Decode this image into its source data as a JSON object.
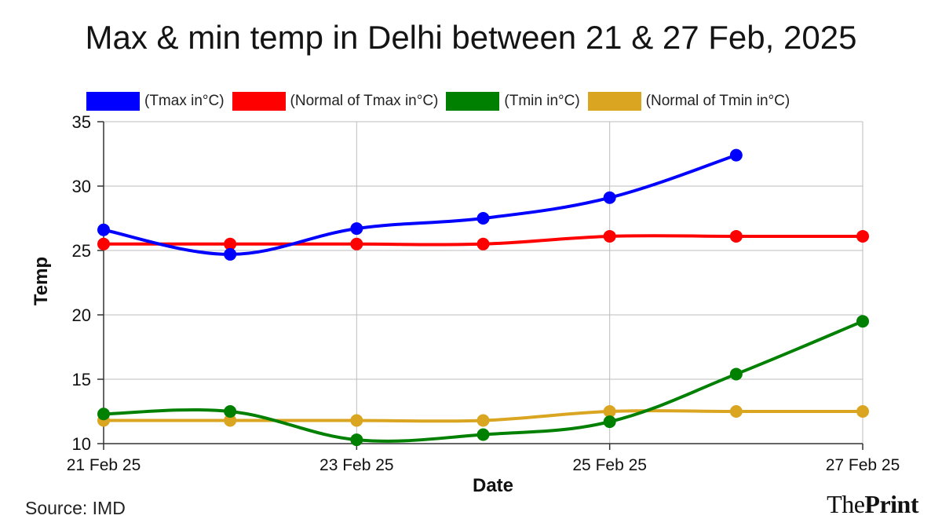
{
  "chart_data": {
    "type": "line",
    "title": "Max & min temp in Delhi between 21 & 27 Feb, 2025",
    "xlabel": "Date",
    "ylabel": "Temp",
    "x_dates": [
      "21 Feb 25",
      "22 Feb 25",
      "23 Feb 25",
      "24 Feb 25",
      "25 Feb 25",
      "26 Feb 25",
      "27 Feb 25"
    ],
    "x_tick_labels": [
      "21 Feb 25",
      "23 Feb 25",
      "25 Feb 25",
      "27 Feb 25"
    ],
    "ylim": [
      10,
      35
    ],
    "y_ticks": [
      10,
      15,
      20,
      25,
      30,
      35
    ],
    "grid": true,
    "legend_position": "top",
    "series": [
      {
        "name": "(Tmax in°C)",
        "color": "#0000ff",
        "values": [
          26.6,
          24.7,
          26.7,
          27.5,
          29.1,
          32.4,
          null
        ]
      },
      {
        "name": "(Normal of Tmax in°C)",
        "color": "#ff0000",
        "values": [
          25.5,
          25.5,
          25.5,
          25.5,
          26.1,
          26.1,
          26.1
        ]
      },
      {
        "name": "(Tmin in°C)",
        "color": "#008000",
        "values": [
          12.3,
          12.5,
          10.3,
          10.7,
          11.7,
          15.4,
          19.5
        ]
      },
      {
        "name": "(Normal of Tmin in°C)",
        "color": "#daa520",
        "values": [
          11.8,
          11.8,
          11.8,
          11.8,
          12.5,
          12.5,
          12.5
        ]
      }
    ]
  },
  "source": "Source: IMD",
  "logo": {
    "the": "The",
    "print": "Print"
  }
}
